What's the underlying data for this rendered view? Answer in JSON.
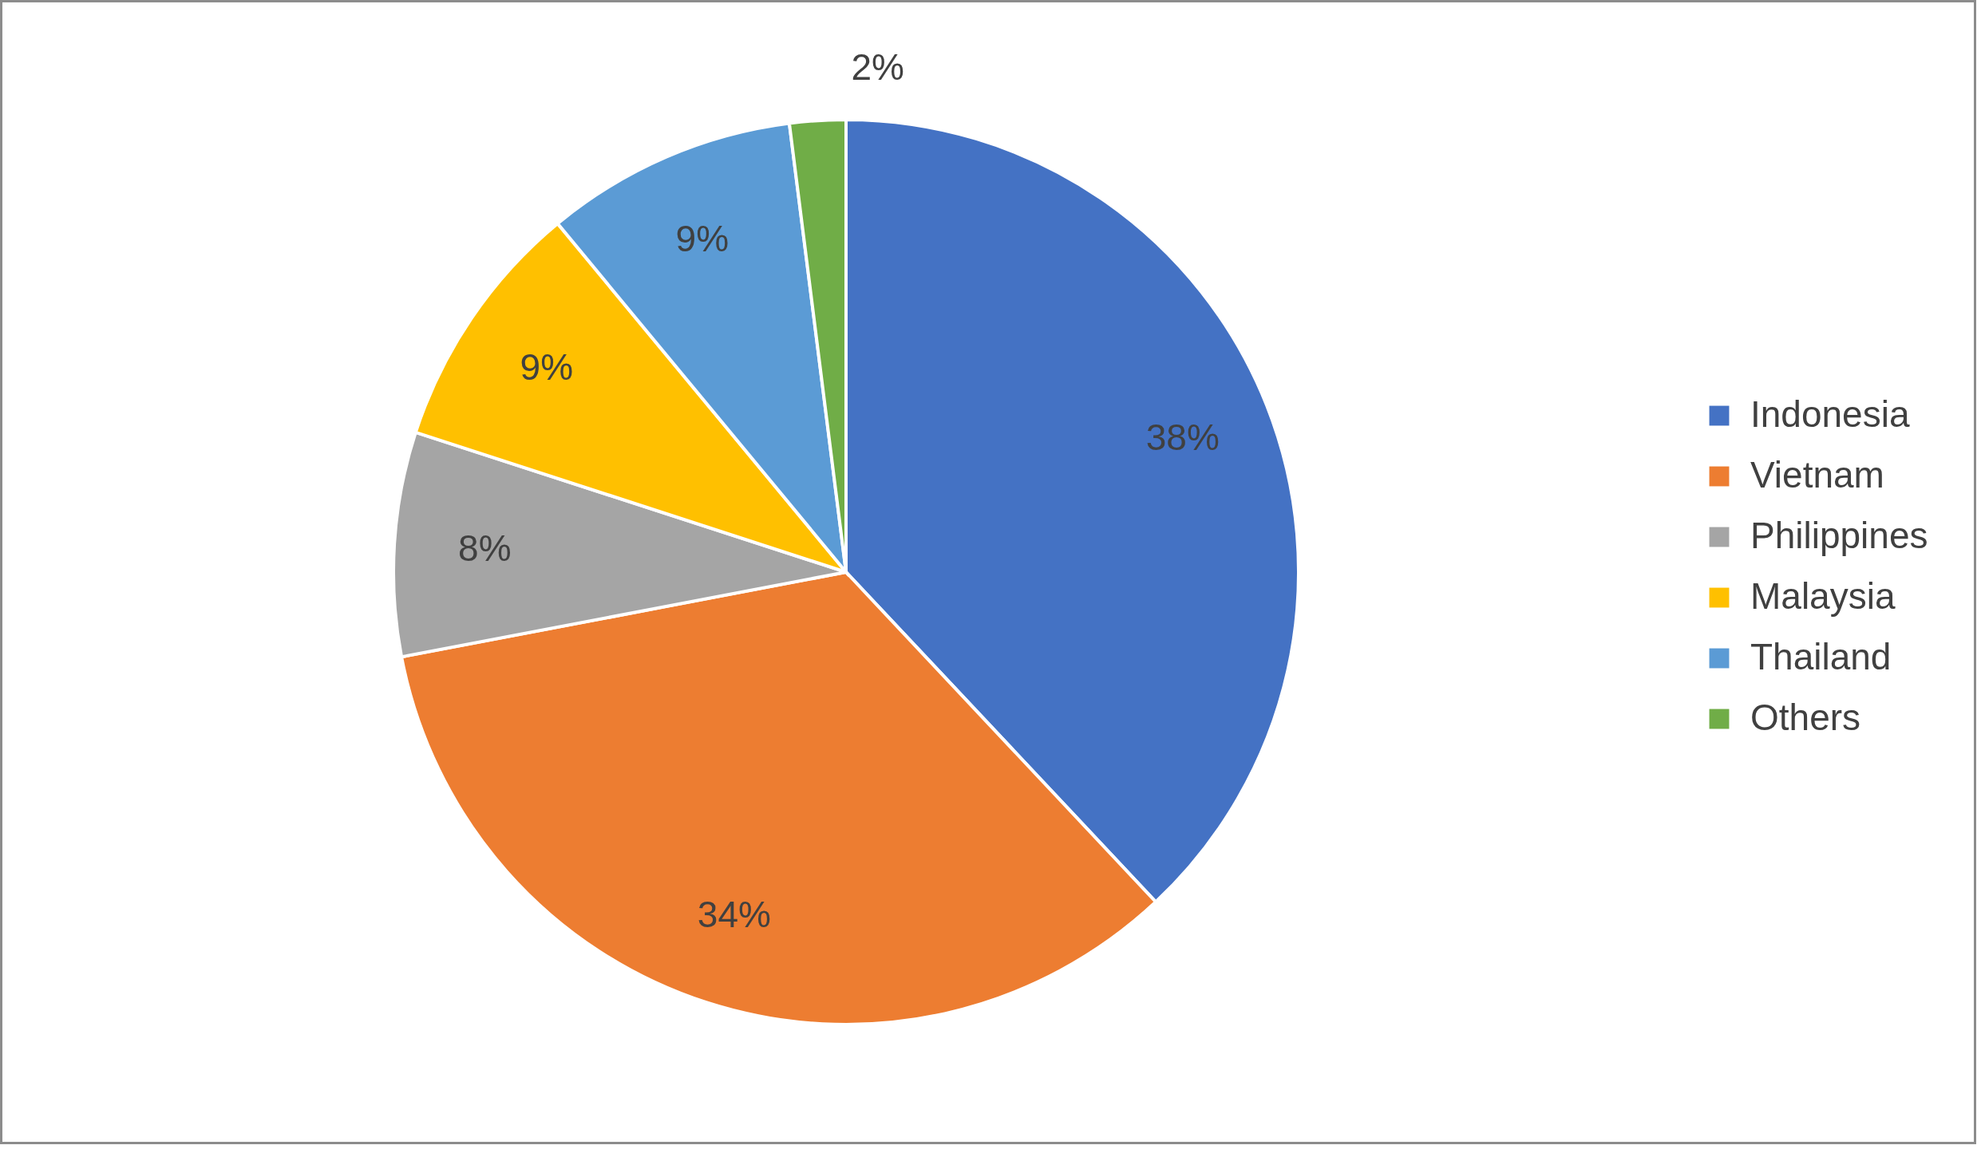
{
  "chart_data": {
    "type": "pie",
    "categories": [
      "Indonesia",
      "Vietnam",
      "Philippines",
      "Malaysia",
      "Thailand",
      "Others"
    ],
    "values": [
      38,
      34,
      8,
      9,
      9,
      2
    ],
    "colors": [
      "#4472c4",
      "#ed7d31",
      "#a5a5a5",
      "#ffc000",
      "#5b9bd5",
      "#70ad47"
    ],
    "value_labels": [
      "38%",
      "34%",
      "8%",
      "9%",
      "9%",
      "2%"
    ],
    "legend": "right"
  }
}
